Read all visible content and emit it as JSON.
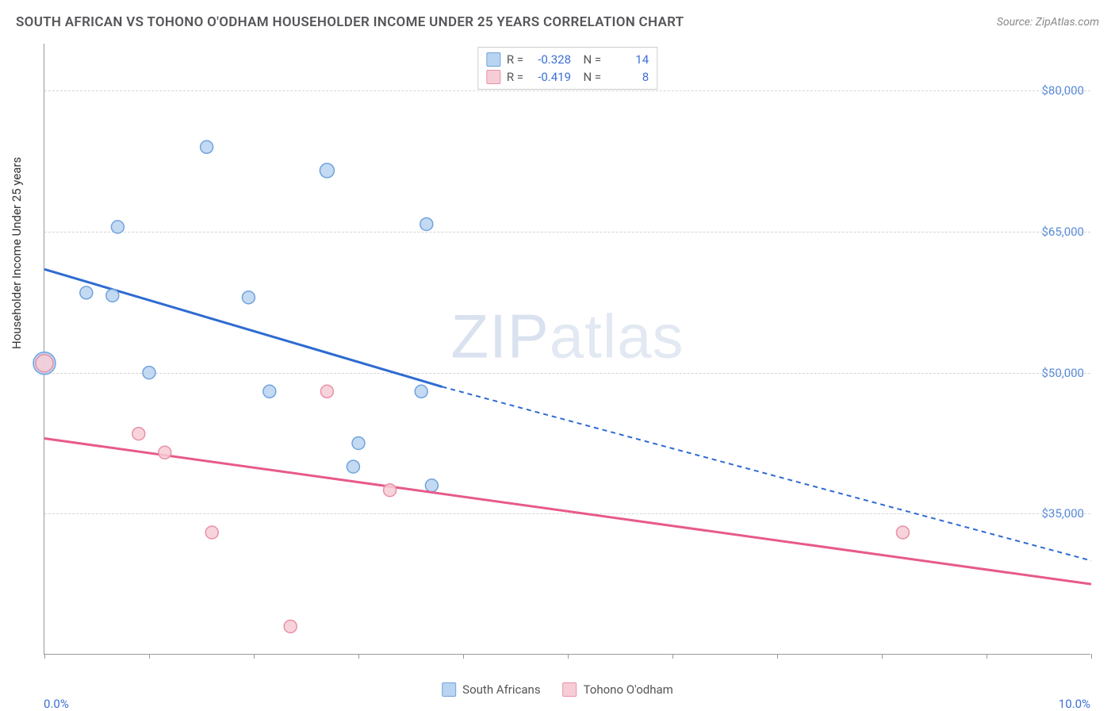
{
  "title": "SOUTH AFRICAN VS TOHONO O'ODHAM HOUSEHOLDER INCOME UNDER 25 YEARS CORRELATION CHART",
  "source": "Source: ZipAtlas.com",
  "ylabel": "Householder Income Under 25 years",
  "watermark_bold": "ZIP",
  "watermark_thin": "atlas",
  "xaxis": {
    "min_label": "0.0%",
    "max_label": "10.0%",
    "min": 0.0,
    "max": 10.0,
    "tick_step": 1.0
  },
  "yaxis": {
    "min": 20000,
    "max": 85000,
    "ticks": [
      35000,
      50000,
      65000,
      80000
    ],
    "tick_labels": [
      "$35,000",
      "$50,000",
      "$65,000",
      "$80,000"
    ]
  },
  "series": [
    {
      "key": "south_africans",
      "label": "South Africans",
      "fill": "#b9d4f0",
      "stroke": "#6fa3dd",
      "line_color": "#2e6bd1",
      "r_value": "-0.328",
      "n_value": "14",
      "points": [
        {
          "x": 0.0,
          "y": 51000,
          "r": 14
        },
        {
          "x": 0.4,
          "y": 58500,
          "r": 8
        },
        {
          "x": 0.65,
          "y": 58200,
          "r": 8
        },
        {
          "x": 0.7,
          "y": 65500,
          "r": 8
        },
        {
          "x": 1.0,
          "y": 50000,
          "r": 8
        },
        {
          "x": 1.55,
          "y": 74000,
          "r": 8
        },
        {
          "x": 1.95,
          "y": 58000,
          "r": 8
        },
        {
          "x": 2.15,
          "y": 48000,
          "r": 8
        },
        {
          "x": 2.7,
          "y": 71500,
          "r": 9
        },
        {
          "x": 2.95,
          "y": 40000,
          "r": 8
        },
        {
          "x": 3.0,
          "y": 42500,
          "r": 8
        },
        {
          "x": 3.6,
          "y": 48000,
          "r": 8
        },
        {
          "x": 3.65,
          "y": 65800,
          "r": 8
        },
        {
          "x": 3.7,
          "y": 38000,
          "r": 8
        }
      ],
      "trend": {
        "x1": 0.0,
        "y1": 61000,
        "x2": 3.8,
        "y2": 48500,
        "dash_x1": 3.8,
        "dash_y1": 48500,
        "dash_x2": 10.0,
        "dash_y2": 30000
      }
    },
    {
      "key": "tohono",
      "label": "Tohono O'odham",
      "fill": "#f6cdd6",
      "stroke": "#ea8fa6",
      "line_color": "#e75a89",
      "r_value": "-0.419",
      "n_value": "8",
      "points": [
        {
          "x": 0.0,
          "y": 51000,
          "r": 11
        },
        {
          "x": 0.9,
          "y": 43500,
          "r": 8
        },
        {
          "x": 1.15,
          "y": 41500,
          "r": 8
        },
        {
          "x": 1.6,
          "y": 33000,
          "r": 8
        },
        {
          "x": 2.35,
          "y": 23000,
          "r": 8
        },
        {
          "x": 2.7,
          "y": 48000,
          "r": 8
        },
        {
          "x": 3.3,
          "y": 37500,
          "r": 8
        },
        {
          "x": 8.2,
          "y": 33000,
          "r": 8
        }
      ],
      "trend": {
        "x1": 0.0,
        "y1": 43000,
        "x2": 10.0,
        "y2": 27500
      }
    }
  ],
  "colors": {
    "grid": "#d5d5d5",
    "axis": "#999999",
    "tick_text": "#5a8bd8",
    "title_text": "#555559"
  }
}
